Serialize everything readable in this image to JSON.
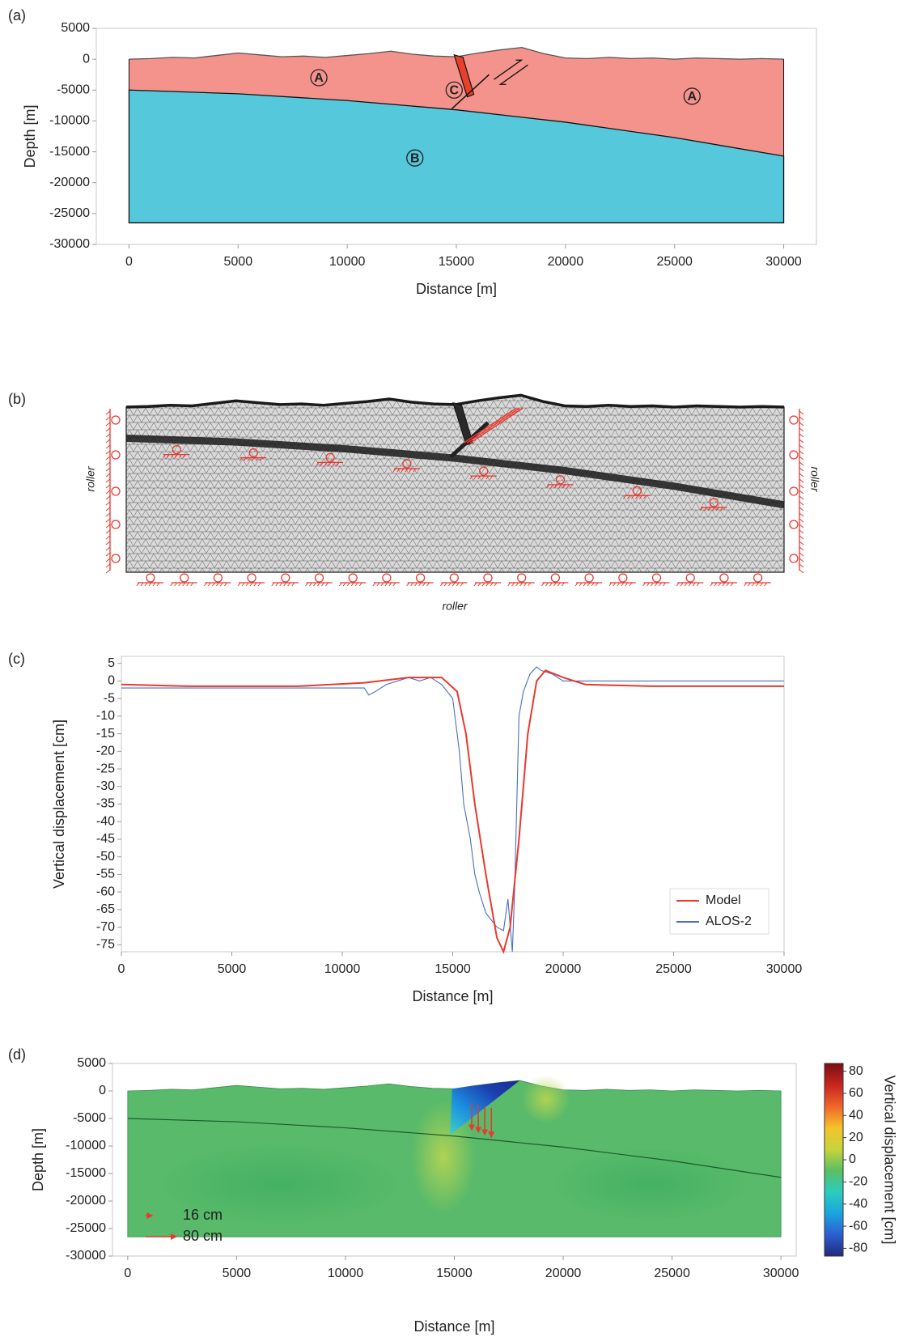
{
  "chart_data": [
    {
      "type": "cross-section",
      "panel_label": "(a)",
      "xlabel": "Distance [m]",
      "ylabel": "Depth [m]",
      "xlim": [
        -1500,
        31500
      ],
      "ylim": [
        -30000,
        5000
      ],
      "xticks": [
        0,
        5000,
        10000,
        15000,
        20000,
        25000,
        30000
      ],
      "yticks": [
        5000,
        0,
        -5000,
        -10000,
        -15000,
        -20000,
        -25000,
        -30000
      ],
      "surface": {
        "x": [
          0,
          1000,
          2000,
          3000,
          4000,
          5000,
          6000,
          7000,
          8000,
          9000,
          10000,
          11000,
          12000,
          13000,
          14000,
          15000,
          16000,
          17000,
          18000,
          19000,
          20000,
          21000,
          22000,
          23000,
          24000,
          25000,
          26000,
          27000,
          28000,
          29000,
          30000
        ],
        "y": [
          0,
          100,
          300,
          200,
          600,
          1000,
          700,
          400,
          500,
          300,
          600,
          900,
          1300,
          800,
          500,
          400,
          1000,
          1500,
          1900,
          900,
          200,
          100,
          300,
          100,
          200,
          0,
          200,
          100,
          0,
          100,
          0
        ]
      },
      "interface": {
        "x": [
          0,
          5000,
          10000,
          15000,
          20000,
          25000,
          30000
        ],
        "y": [
          -5000,
          -5600,
          -6700,
          -8200,
          -10200,
          -12700,
          -15700
        ]
      },
      "bottom": -26500,
      "fault": {
        "x": [
          14900,
          15300,
          15800,
          15500
        ],
        "y": [
          700,
          300,
          -5700,
          -6100
        ]
      },
      "thrust": {
        "x": [
          14800,
          16500
        ],
        "y": [
          -8000,
          -2500
        ]
      },
      "colors": {
        "upper": "#f4928c",
        "lower": "#55c8db",
        "fault": "#e8402a"
      },
      "annotations": [
        {
          "text": "A",
          "x": 8700,
          "y": -3000
        },
        {
          "text": "A",
          "x": 25800,
          "y": -6000
        },
        {
          "text": "B",
          "x": 13100,
          "y": -16000
        },
        {
          "text": "C",
          "x": 14900,
          "y": -5000
        }
      ]
    },
    {
      "type": "mesh",
      "panel_label": "(b)",
      "boundary_labels": [
        "roller",
        "roller",
        "roller"
      ],
      "mesh_color": "#d9d9d9",
      "support_color": "#e8392f"
    },
    {
      "type": "line",
      "panel_label": "(c)",
      "xlabel": "Distance [m]",
      "ylabel": "Vertical displacement [cm]",
      "xlim": [
        0,
        30000
      ],
      "ylim": [
        -77,
        7
      ],
      "xticks": [
        0,
        5000,
        10000,
        15000,
        20000,
        25000,
        30000
      ],
      "yticks": [
        5,
        0,
        -5,
        -10,
        -15,
        -20,
        -25,
        -30,
        -35,
        -40,
        -45,
        -50,
        -55,
        -60,
        -65,
        -70,
        -75
      ],
      "legend": "lower right",
      "series": [
        {
          "name": "Model",
          "color": "#e8392f",
          "x": [
            0,
            3000,
            8000,
            11000,
            13000,
            14500,
            15200,
            15600,
            16000,
            16500,
            17000,
            17300,
            17600,
            18000,
            18400,
            18800,
            19200,
            20000,
            21000,
            24000,
            30000
          ],
          "values": [
            -1,
            -1.5,
            -1.5,
            -0.5,
            1,
            1,
            -3,
            -15,
            -35,
            -55,
            -73,
            -77,
            -70,
            -45,
            -15,
            0,
            3,
            1,
            -1,
            -1.5,
            -1.5
          ]
        },
        {
          "name": "ALOS-2",
          "color": "#4a6fc0",
          "x": [
            0,
            11000,
            11200,
            11500,
            12000,
            12500,
            13000,
            13500,
            14000,
            14500,
            15000,
            15300,
            15500,
            15800,
            16000,
            16200,
            16500,
            17000,
            17300,
            17500,
            17700,
            17800,
            18000,
            18200,
            18500,
            18800,
            19000,
            19500,
            20000,
            30000
          ],
          "values": [
            -2,
            -2,
            -4,
            -3,
            -1,
            0,
            1,
            0,
            1,
            -1,
            -5,
            -20,
            -35,
            -45,
            -55,
            -60,
            -66,
            -70,
            -71,
            -62,
            -77,
            -60,
            -10,
            -3,
            2,
            4,
            3,
            2,
            0,
            0
          ]
        }
      ]
    },
    {
      "type": "contour",
      "panel_label": "(d)",
      "xlabel": "Distance [m]",
      "ylabel": "Depth [m]",
      "xlim": [
        -700,
        30700
      ],
      "ylim": [
        -30000,
        5000
      ],
      "xticks": [
        0,
        5000,
        10000,
        15000,
        20000,
        25000,
        30000
      ],
      "yticks": [
        5000,
        0,
        -5000,
        -10000,
        -15000,
        -20000,
        -25000,
        -30000
      ],
      "colorbar": {
        "label": "Vertical displacement [cm]",
        "clim": [
          -87,
          87
        ],
        "ticks": [
          80,
          60,
          40,
          20,
          0,
          -20,
          -40,
          -60,
          -80
        ],
        "colors": [
          "#22287a",
          "#2c5fd0",
          "#1aa5e0",
          "#2ccdbd",
          "#5bbf62",
          "#c8d43c",
          "#f5c22a",
          "#f0652a",
          "#c7251f",
          "#7a0f14"
        ]
      },
      "field_color": "#58ba6a",
      "vectors": {
        "x": [
          15800,
          16100,
          16400,
          16700
        ],
        "y": [
          -2200,
          -2500,
          -2800,
          -3100
        ],
        "v": [
          -70,
          -72,
          -74,
          -76
        ]
      },
      "arrow_key": [
        {
          "value": 16,
          "label": "16 cm"
        },
        {
          "value": 80,
          "label": "80 cm"
        }
      ],
      "color": "#e8392f"
    }
  ]
}
